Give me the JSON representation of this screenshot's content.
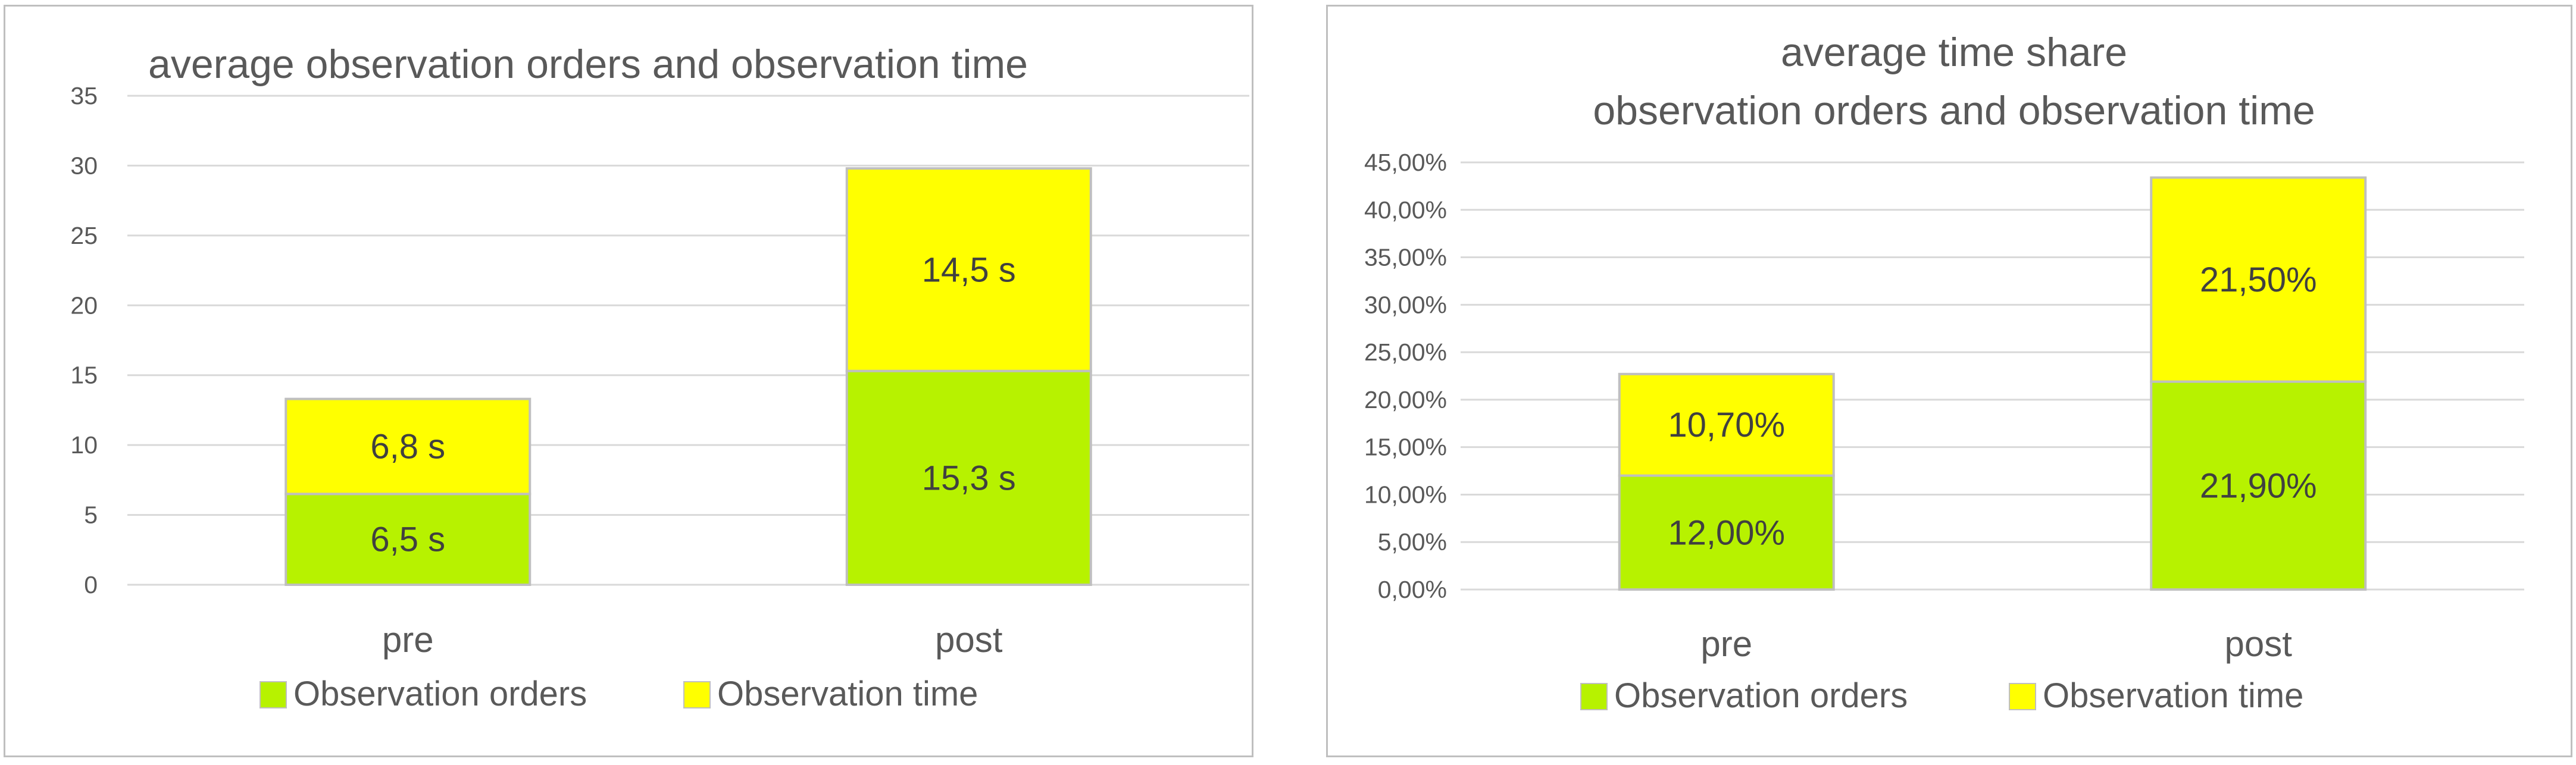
{
  "colors": {
    "observation_orders": "#b7f200",
    "observation_time": "#ffff00",
    "bar_outline": "#bfbfbf",
    "gridline": "#d9d9d9",
    "text": "#595959"
  },
  "chart_data": [
    {
      "type": "bar",
      "stacked": true,
      "title": "average observation orders and observation time",
      "categories": [
        "pre",
        "post"
      ],
      "series": [
        {
          "name": "Observation orders",
          "values": [
            6.5,
            15.3
          ],
          "labels": [
            "6,5 s",
            "15,3 s"
          ]
        },
        {
          "name": "Observation time",
          "values": [
            6.8,
            14.5
          ],
          "labels": [
            "6,8 s",
            "14,5 s"
          ]
        }
      ],
      "ylim": [
        0,
        35
      ],
      "yticks": [
        "0",
        "5",
        "10",
        "15",
        "20",
        "25",
        "30",
        "35"
      ],
      "grid": true,
      "legend_position": "bottom"
    },
    {
      "type": "bar",
      "stacked": true,
      "title": [
        "average time share",
        "observation orders and observation time"
      ],
      "categories": [
        "pre",
        "post"
      ],
      "series": [
        {
          "name": "Observation orders",
          "values": [
            12.0,
            21.9
          ],
          "labels": [
            "12,00%",
            "21,90%"
          ]
        },
        {
          "name": "Observation time",
          "values": [
            10.7,
            21.5
          ],
          "labels": [
            "10,70%",
            "21,50%"
          ]
        }
      ],
      "ylim": [
        0,
        45
      ],
      "yticks": [
        "0,00%",
        "5,00%",
        "10,00%",
        "15,00%",
        "20,00%",
        "25,00%",
        "30,00%",
        "35,00%",
        "40,00%",
        "45,00%"
      ],
      "grid": true,
      "legend_position": "bottom"
    }
  ]
}
